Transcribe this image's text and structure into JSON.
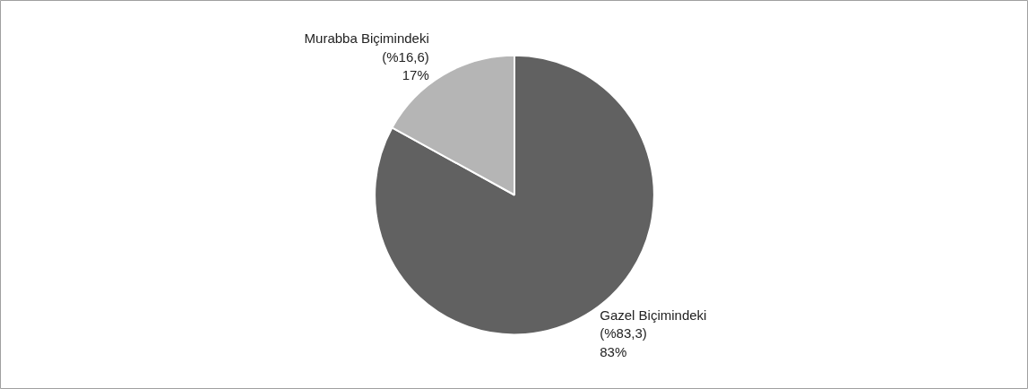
{
  "chart_data": {
    "type": "pie",
    "categories": [
      "Gazel Biçimindeki (%83,3)",
      "Murabba Biçimindeki (%16,6)"
    ],
    "values": [
      83,
      17
    ],
    "colors": [
      "#616161",
      "#b5b5b5"
    ],
    "value_labels": [
      "83%",
      "17%"
    ]
  }
}
